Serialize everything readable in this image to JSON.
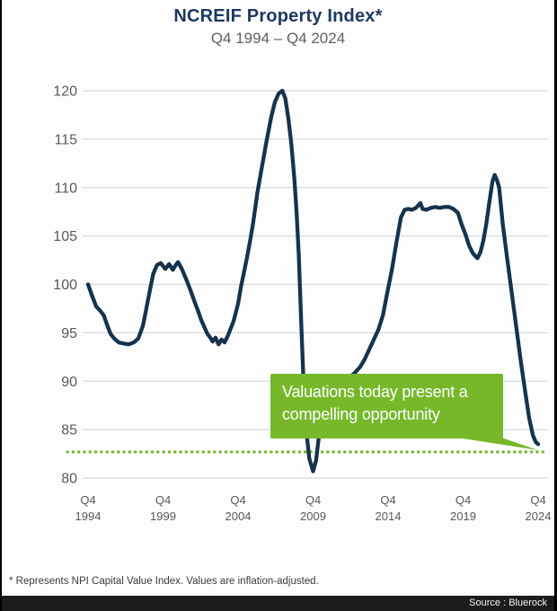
{
  "header": {
    "title": "NCREIF Property Index*",
    "subtitle": "Q4 1994 – Q4 2024"
  },
  "callout": {
    "line1": "Valuations today present a",
    "line2": "compelling opportunity"
  },
  "footnote": "* Represents NPI Capital Value Index. Values are inflation-adjusted.",
  "source_bar": {
    "text": "Source : Bluerock"
  },
  "chart_data": {
    "type": "line",
    "title": "NCREIF Property Index*",
    "subtitle": "Q4 1994 – Q4 2024",
    "xlabel": "",
    "ylabel": "",
    "ylim": [
      80,
      120
    ],
    "xlim_quarters": [
      "Q4 1994",
      "Q4 2024"
    ],
    "grid": true,
    "legend": "none",
    "y_ticks": [
      120,
      115,
      110,
      105,
      100,
      95,
      90,
      85,
      80
    ],
    "x_ticks": [
      {
        "line1": "Q4",
        "line2": "1994",
        "t": 1994.75
      },
      {
        "line1": "Q4",
        "line2": "1999",
        "t": 1999.75
      },
      {
        "line1": "Q4",
        "line2": "2004",
        "t": 2004.75
      },
      {
        "line1": "Q4",
        "line2": "2009",
        "t": 2009.75
      },
      {
        "line1": "Q4",
        "line2": "2014",
        "t": 2014.75
      },
      {
        "line1": "Q4",
        "line2": "2019",
        "t": 2019.75
      },
      {
        "line1": "Q4",
        "line2": "2024",
        "t": 2024.75
      }
    ],
    "line_color": "#16334d",
    "accent_green": "#76b82a",
    "axis_text_color": "#595959",
    "grid_color": "#d9d9d9",
    "reference_line": {
      "value": 82.7,
      "color": "#76b82a",
      "style": "dotted"
    },
    "annotation": {
      "text": "Valuations today present a compelling opportunity"
    },
    "series": [
      {
        "name": "NCREIF Property Index (NPI Capital Value, inflation-adjusted, Q4 1994 = 100)",
        "points": [
          [
            1994.75,
            100.0
          ],
          [
            1995.0,
            98.9
          ],
          [
            1995.3,
            97.7
          ],
          [
            1995.55,
            97.3
          ],
          [
            1995.8,
            96.8
          ],
          [
            1996.0,
            95.9
          ],
          [
            1996.25,
            94.9
          ],
          [
            1996.5,
            94.4
          ],
          [
            1996.8,
            94.0
          ],
          [
            1997.1,
            93.9
          ],
          [
            1997.45,
            93.8
          ],
          [
            1997.8,
            94.0
          ],
          [
            1998.1,
            94.4
          ],
          [
            1998.4,
            95.7
          ],
          [
            1998.65,
            97.6
          ],
          [
            1998.9,
            99.6
          ],
          [
            1999.1,
            101.1
          ],
          [
            1999.35,
            102.0
          ],
          [
            1999.6,
            102.2
          ],
          [
            1999.9,
            101.6
          ],
          [
            2000.15,
            102.1
          ],
          [
            2000.4,
            101.5
          ],
          [
            2000.6,
            102.0
          ],
          [
            2000.75,
            102.3
          ],
          [
            2001.0,
            101.6
          ],
          [
            2001.3,
            100.5
          ],
          [
            2001.6,
            99.3
          ],
          [
            2001.85,
            98.2
          ],
          [
            2002.1,
            97.2
          ],
          [
            2002.3,
            96.3
          ],
          [
            2002.5,
            95.6
          ],
          [
            2002.7,
            94.9
          ],
          [
            2002.9,
            94.5
          ],
          [
            2003.05,
            94.1
          ],
          [
            2003.25,
            94.5
          ],
          [
            2003.45,
            93.8
          ],
          [
            2003.65,
            94.3
          ],
          [
            2003.85,
            94.0
          ],
          [
            2004.1,
            94.8
          ],
          [
            2004.45,
            96.2
          ],
          [
            2004.75,
            98.0
          ],
          [
            2004.95,
            99.8
          ],
          [
            2005.15,
            101.3
          ],
          [
            2005.35,
            102.8
          ],
          [
            2005.55,
            104.5
          ],
          [
            2005.75,
            106.3
          ],
          [
            2006.05,
            109.6
          ],
          [
            2006.35,
            112.2
          ],
          [
            2006.65,
            114.8
          ],
          [
            2006.95,
            117.2
          ],
          [
            2007.2,
            118.8
          ],
          [
            2007.45,
            119.7
          ],
          [
            2007.7,
            120.0
          ],
          [
            2007.9,
            119.2
          ],
          [
            2008.1,
            117.2
          ],
          [
            2008.3,
            114.5
          ],
          [
            2008.5,
            111.0
          ],
          [
            2008.65,
            107.5
          ],
          [
            2008.8,
            103.0
          ],
          [
            2008.95,
            96.5
          ],
          [
            2009.1,
            90.5
          ],
          [
            2009.3,
            84.8
          ],
          [
            2009.5,
            82.0
          ],
          [
            2009.75,
            80.7
          ],
          [
            2009.95,
            81.8
          ],
          [
            2010.1,
            83.8
          ],
          [
            2010.3,
            86.2
          ],
          [
            2010.6,
            87.8
          ],
          [
            2010.9,
            88.6
          ],
          [
            2011.2,
            89.1
          ],
          [
            2011.6,
            89.7
          ],
          [
            2012.0,
            90.2
          ],
          [
            2012.5,
            90.8
          ],
          [
            2012.9,
            91.5
          ],
          [
            2013.2,
            92.3
          ],
          [
            2013.5,
            93.3
          ],
          [
            2013.8,
            94.3
          ],
          [
            2014.1,
            95.3
          ],
          [
            2014.4,
            96.8
          ],
          [
            2014.7,
            99.2
          ],
          [
            2015.0,
            101.5
          ],
          [
            2015.3,
            104.3
          ],
          [
            2015.6,
            106.9
          ],
          [
            2015.85,
            107.7
          ],
          [
            2016.1,
            107.8
          ],
          [
            2016.35,
            107.7
          ],
          [
            2016.6,
            107.9
          ],
          [
            2016.9,
            108.4
          ],
          [
            2017.05,
            107.8
          ],
          [
            2017.3,
            107.7
          ],
          [
            2017.6,
            107.9
          ],
          [
            2017.9,
            108.0
          ],
          [
            2018.2,
            107.9
          ],
          [
            2018.5,
            108.0
          ],
          [
            2018.8,
            108.0
          ],
          [
            2019.1,
            107.8
          ],
          [
            2019.4,
            107.4
          ],
          [
            2019.65,
            106.2
          ],
          [
            2019.9,
            105.2
          ],
          [
            2020.15,
            104.0
          ],
          [
            2020.4,
            103.2
          ],
          [
            2020.7,
            102.7
          ],
          [
            2020.9,
            103.3
          ],
          [
            2021.1,
            104.5
          ],
          [
            2021.3,
            106.3
          ],
          [
            2021.5,
            108.5
          ],
          [
            2021.7,
            110.6
          ],
          [
            2021.85,
            111.3
          ],
          [
            2022.0,
            110.8
          ],
          [
            2022.15,
            110.0
          ],
          [
            2022.4,
            106.1
          ],
          [
            2022.7,
            102.5
          ],
          [
            2023.0,
            99.0
          ],
          [
            2023.3,
            95.5
          ],
          [
            2023.6,
            92.0
          ],
          [
            2023.9,
            88.8
          ],
          [
            2024.15,
            86.2
          ],
          [
            2024.4,
            84.4
          ],
          [
            2024.6,
            83.7
          ],
          [
            2024.75,
            83.5
          ]
        ]
      }
    ]
  }
}
